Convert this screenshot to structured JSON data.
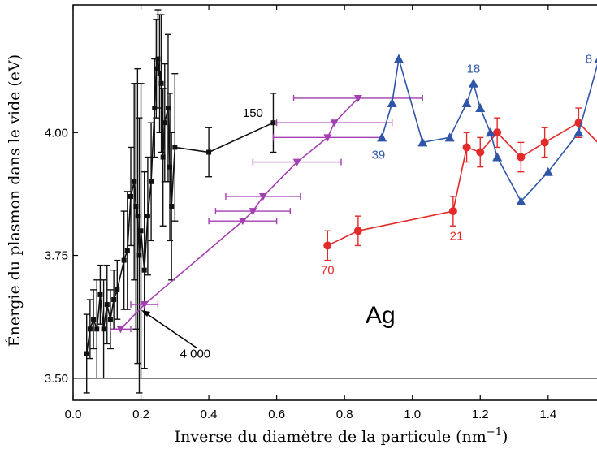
{
  "chart_data": {
    "type": "scatter",
    "title": "",
    "xlabel": "Inverse du diamètre de la particule (nm",
    "xlabel_sup": "−1",
    "xlabel_close": ")",
    "ylabel": "Énergie du plasmon dans le vide (eV)",
    "xlim": [
      0.0,
      1.58
    ],
    "ylim": [
      3.455,
      4.26
    ],
    "xticks": [
      0.0,
      0.2,
      0.4,
      0.6,
      0.8,
      1.0,
      1.2,
      1.4
    ],
    "xtick_labels": [
      "0.0",
      "0.2",
      "0.4",
      "0.6",
      "0.8",
      "1.0",
      "1.2",
      "1.4"
    ],
    "yticks": [
      3.5,
      3.75,
      4.0
    ],
    "ytick_labels": [
      "3.50",
      "3.75",
      "4.00"
    ],
    "reference_line_y": 3.5,
    "panel_label": "Ag",
    "series": [
      {
        "color": "#111111",
        "marker": "square",
        "x": [
          0.04,
          0.05,
          0.06,
          0.07,
          0.08,
          0.09,
          0.1,
          0.11,
          0.12,
          0.13,
          0.15,
          0.16,
          0.17,
          0.18,
          0.185,
          0.19,
          0.195,
          0.2,
          0.21,
          0.22,
          0.23,
          0.24,
          0.245,
          0.25,
          0.255,
          0.26,
          0.265,
          0.27,
          0.28,
          0.285,
          0.29,
          0.3,
          0.4,
          0.59
        ],
        "y": [
          3.55,
          3.6,
          3.62,
          3.6,
          3.67,
          3.6,
          3.65,
          3.62,
          3.66,
          3.68,
          3.74,
          3.76,
          3.87,
          3.9,
          3.85,
          3.83,
          3.75,
          3.8,
          3.72,
          3.83,
          3.9,
          4.05,
          4.13,
          4.15,
          4.12,
          4.1,
          3.95,
          4.02,
          4.05,
          3.93,
          3.85,
          3.97,
          3.96,
          4.02
        ],
        "err": [
          0.08,
          0.06,
          0.06,
          0.1,
          0.06,
          0.1,
          0.08,
          0.06,
          0.06,
          0.06,
          0.1,
          0.12,
          0.1,
          0.2,
          0.25,
          0.3,
          0.28,
          0.3,
          0.2,
          0.12,
          0.12,
          0.1,
          0.1,
          0.1,
          0.12,
          0.14,
          0.14,
          0.12,
          0.15,
          0.15,
          0.15,
          0.15,
          0.05,
          0.06
        ]
      },
      {
        "color": "#a43fb2",
        "marker": "triangle-down",
        "x": [
          0.14,
          0.21,
          0.5,
          0.53,
          0.56,
          0.66,
          0.75,
          0.77,
          0.84
        ],
        "y": [
          3.6,
          3.65,
          3.82,
          3.84,
          3.87,
          3.94,
          3.99,
          4.02,
          4.07
        ],
        "xerr": [
          0.03,
          0.04,
          0.1,
          0.11,
          0.11,
          0.13,
          0.16,
          0.17,
          0.19
        ]
      },
      {
        "color": "#e32a2a",
        "marker": "circle",
        "x": [
          0.75,
          0.84,
          1.12,
          1.16,
          1.2,
          1.25,
          1.32,
          1.39,
          1.49,
          1.56
        ],
        "y": [
          3.77,
          3.8,
          3.84,
          3.97,
          3.96,
          4.0,
          3.95,
          3.98,
          4.02,
          3.97
        ],
        "err": [
          0.03,
          0.03,
          0.03,
          0.03,
          0.03,
          0.03,
          0.03,
          0.03,
          0.03,
          0.03
        ]
      },
      {
        "color": "#2f55a8",
        "marker": "triangle-up",
        "x": [
          0.91,
          0.94,
          0.96,
          1.03,
          1.11,
          1.16,
          1.18,
          1.2,
          1.23,
          1.25,
          1.32,
          1.4,
          1.49,
          1.55
        ],
        "y": [
          3.99,
          4.06,
          4.15,
          3.98,
          3.99,
          4.06,
          4.1,
          4.05,
          4.0,
          3.95,
          3.86,
          3.92,
          4.0,
          4.15
        ]
      }
    ],
    "annotations": [
      {
        "text": "150",
        "x": 0.53,
        "y": 4.04,
        "color": "#000000"
      },
      {
        "text": "4 000",
        "x": 0.36,
        "y": 3.55,
        "color": "#000000"
      },
      {
        "text": "39",
        "x": 0.9,
        "y": 3.955,
        "color": "#2f55a8"
      },
      {
        "text": "18",
        "x": 1.18,
        "y": 4.13,
        "color": "#2f55a8"
      },
      {
        "text": "8",
        "x": 1.52,
        "y": 4.15,
        "color": "#2f55a8"
      },
      {
        "text": "21",
        "x": 1.13,
        "y": 3.79,
        "color": "#e32a2a"
      },
      {
        "text": "70",
        "x": 0.75,
        "y": 3.72,
        "color": "#e32a2a"
      }
    ]
  }
}
